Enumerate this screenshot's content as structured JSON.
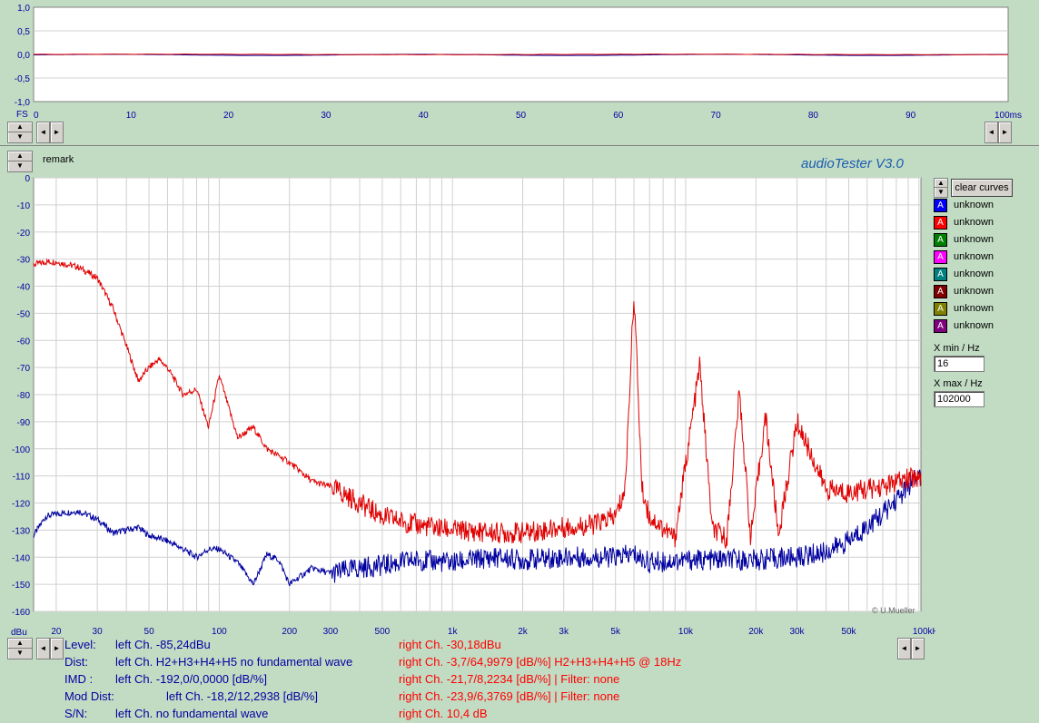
{
  "app": {
    "title": "audioTester  V3.0",
    "remark_label": "remark",
    "copyright": "© U.Mueller"
  },
  "colors": {
    "background": "#c2dcc4",
    "left_channel": "#0000a0",
    "right_channel": "#e00000"
  },
  "time_chart": {
    "type": "line",
    "xlabel_left": "FS",
    "y_ticks": [
      "1,0",
      "0,5",
      "0,0",
      "-0,5",
      "-1,0"
    ],
    "x_ticks": [
      "0",
      "10",
      "20",
      "30",
      "40",
      "50",
      "60",
      "70",
      "80",
      "90",
      "100ms"
    ],
    "xlim": [
      0,
      100
    ],
    "ylim": [
      -1,
      1
    ]
  },
  "legend": {
    "clear_button": "clear curves",
    "items": [
      {
        "label": "unknown",
        "color": "#0000ff",
        "glyph": "A"
      },
      {
        "label": "unknown",
        "color": "#ff0000",
        "glyph": "A"
      },
      {
        "label": "unknown",
        "color": "#008000",
        "glyph": "A"
      },
      {
        "label": "unknown",
        "color": "#ff00ff",
        "glyph": "A"
      },
      {
        "label": "unknown",
        "color": "#008080",
        "glyph": "A"
      },
      {
        "label": "unknown",
        "color": "#800000",
        "glyph": "A"
      },
      {
        "label": "unknown",
        "color": "#808000",
        "glyph": "A"
      },
      {
        "label": "unknown",
        "color": "#800080",
        "glyph": "A"
      }
    ],
    "xmin_label": "X min / Hz",
    "xmin_value": "16",
    "xmax_label": "X max / Hz",
    "xmax_value": "102000"
  },
  "chart_data": {
    "type": "line",
    "title": "",
    "xscale": "log",
    "xlim": [
      16,
      102000
    ],
    "ylim": [
      -160,
      0
    ],
    "ylabel": "dBu",
    "y_ticks": [
      "0",
      "-10",
      "-20",
      "-30",
      "-40",
      "-50",
      "-60",
      "-70",
      "-80",
      "-90",
      "-100",
      "-110",
      "-120",
      "-130",
      "-140",
      "-150",
      "-160"
    ],
    "x_ticks": [
      "20",
      "30",
      "50",
      "100",
      "200",
      "300",
      "500",
      "1k",
      "2k",
      "3k",
      "5k",
      "10k",
      "20k",
      "30k",
      "50k",
      "100kHz"
    ],
    "grid": true,
    "series": [
      {
        "name": "left Ch.",
        "color": "#0000a0",
        "x": [
          16,
          18,
          20,
          25,
          30,
          35,
          40,
          45,
          50,
          60,
          70,
          80,
          90,
          100,
          120,
          140,
          160,
          180,
          200,
          250,
          300,
          400,
          500,
          700,
          1000,
          1500,
          2000,
          3000,
          5000,
          6000,
          7000,
          10000,
          15000,
          20000,
          30000,
          40000,
          50000,
          70000,
          100000
        ],
        "y": [
          -132,
          -125,
          -124,
          -123,
          -126,
          -131,
          -130,
          -129,
          -132,
          -134,
          -137,
          -140,
          -137,
          -137,
          -142,
          -150,
          -139,
          -141,
          -150,
          -144,
          -146,
          -144,
          -143,
          -141,
          -142,
          -140,
          -141,
          -140,
          -140,
          -139,
          -142,
          -141,
          -141,
          -141,
          -140,
          -138,
          -134,
          -124,
          -110
        ]
      },
      {
        "name": "right Ch.",
        "color": "#e00000",
        "x": [
          16,
          18,
          20,
          25,
          30,
          35,
          40,
          45,
          50,
          55,
          60,
          70,
          80,
          90,
          100,
          120,
          140,
          160,
          200,
          250,
          300,
          400,
          500,
          700,
          1000,
          1500,
          2000,
          3000,
          4000,
          5000,
          5500,
          6000,
          6500,
          7000,
          9000,
          11500,
          13000,
          15000,
          17000,
          19000,
          22000,
          25000,
          30000,
          40000,
          50000,
          70000,
          100000
        ],
        "y": [
          -32,
          -31,
          -31,
          -33,
          -37,
          -48,
          -62,
          -75,
          -70,
          -67,
          -70,
          -80,
          -78,
          -92,
          -73,
          -96,
          -92,
          -100,
          -105,
          -112,
          -114,
          -120,
          -125,
          -128,
          -130,
          -131,
          -131,
          -129,
          -128,
          -125,
          -115,
          -42,
          -115,
          -125,
          -133,
          -69,
          -130,
          -133,
          -79,
          -133,
          -88,
          -132,
          -90,
          -115,
          -116,
          -114,
          -110
        ]
      }
    ]
  },
  "stats": {
    "level": {
      "label": "Level:",
      "left": "left Ch. -85,24dBu",
      "right": "right Ch. -30,18dBu"
    },
    "dist": {
      "label": "Dist:",
      "left": "left Ch. H2+H3+H4+H5 no fundamental wave",
      "right": "right Ch. -3,7/64,9979 [dB/%] H2+H3+H4+H5 @ 18Hz"
    },
    "imd": {
      "label": "IMD  :",
      "left": "left Ch. -192,0/0,0000 [dB/%]",
      "right": "right Ch. -21,7/8,2234 [dB/%] |   Filter: none"
    },
    "mod": {
      "label": "Mod Dist:",
      "left": "left Ch. -18,2/12,2938 [dB/%]",
      "right": "right Ch. -23,9/6,3769 [dB/%] |   Filter: none"
    },
    "sn": {
      "label": "S/N:",
      "left": "left Ch.  no fundamental wave",
      "right": "right Ch. 10,4 dB"
    }
  }
}
